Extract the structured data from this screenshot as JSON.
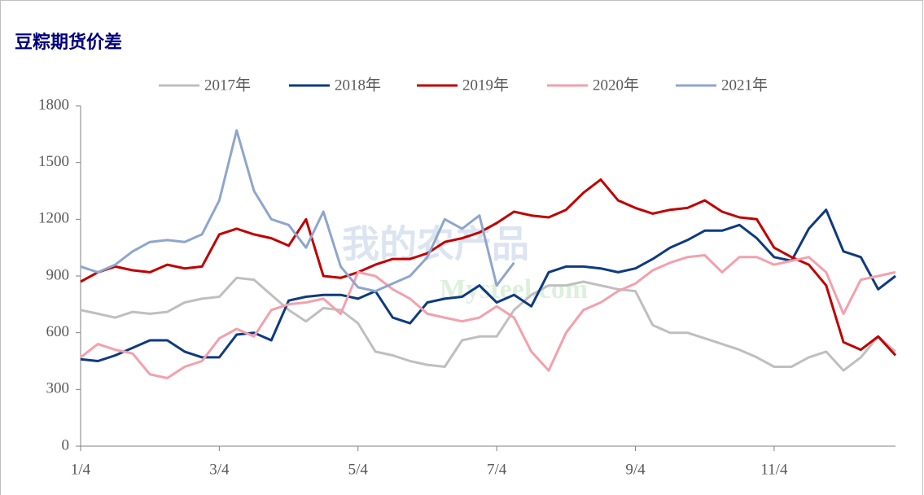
{
  "chart_data": {
    "type": "line",
    "title": "豆粽期货价差",
    "watermark": [
      "我的农产品",
      "Mysteel.com"
    ],
    "categories": [
      "1/4",
      null,
      null,
      null,
      null,
      null,
      null,
      null,
      "3/4",
      null,
      null,
      null,
      null,
      null,
      null,
      null,
      "5/4",
      null,
      null,
      null,
      null,
      null,
      null,
      null,
      "7/4",
      null,
      null,
      null,
      null,
      null,
      null,
      null,
      "9/4",
      null,
      null,
      null,
      null,
      null,
      null,
      null,
      "11/4",
      null,
      null,
      null,
      null,
      null,
      null,
      null
    ],
    "ylim": [
      0,
      1800
    ],
    "yticks": [
      0,
      300,
      600,
      900,
      1200,
      1500,
      1800
    ],
    "series": [
      {
        "name": "2017年",
        "color": "#bfbfbf",
        "values": [
          720,
          700,
          680,
          710,
          700,
          710,
          760,
          780,
          790,
          890,
          880,
          800,
          720,
          660,
          730,
          720,
          650,
          500,
          480,
          450,
          430,
          420,
          560,
          580,
          580,
          720,
          800,
          850,
          850,
          870,
          850,
          830,
          820,
          640,
          600,
          600,
          570,
          540,
          510,
          470,
          420,
          420,
          470,
          500,
          400,
          470,
          580,
          500
        ]
      },
      {
        "name": "2018年",
        "color": "#0e3a80",
        "values": [
          460,
          450,
          480,
          520,
          560,
          560,
          500,
          470,
          470,
          590,
          600,
          560,
          770,
          790,
          800,
          800,
          780,
          820,
          680,
          650,
          760,
          780,
          790,
          850,
          760,
          800,
          740,
          920,
          950,
          950,
          940,
          920,
          940,
          990,
          1050,
          1090,
          1140,
          1140,
          1170,
          1100,
          1000,
          980,
          1150,
          1250,
          1030,
          1000,
          830,
          900
        ]
      },
      {
        "name": "2019年",
        "color": "#c00000",
        "values": [
          870,
          920,
          950,
          930,
          920,
          960,
          940,
          950,
          1120,
          1150,
          1120,
          1100,
          1060,
          1200,
          900,
          890,
          920,
          960,
          990,
          990,
          1020,
          1080,
          1100,
          1130,
          1180,
          1240,
          1220,
          1210,
          1250,
          1340,
          1410,
          1300,
          1260,
          1230,
          1250,
          1260,
          1300,
          1240,
          1210,
          1200,
          1050,
          1000,
          960,
          850,
          550,
          510,
          580,
          480
        ]
      },
      {
        "name": "2020年",
        "color": "#f4a0ac",
        "values": [
          470,
          540,
          510,
          490,
          380,
          360,
          420,
          450,
          570,
          620,
          580,
          720,
          750,
          760,
          780,
          700,
          920,
          900,
          830,
          780,
          700,
          680,
          660,
          680,
          740,
          680,
          500,
          400,
          600,
          720,
          760,
          820,
          860,
          930,
          970,
          1000,
          1010,
          920,
          1000,
          1000,
          960,
          980,
          1000,
          920,
          700,
          880,
          900,
          920
        ]
      },
      {
        "name": "2021年",
        "color": "#8ea6cc",
        "values": [
          950,
          920,
          960,
          1030,
          1080,
          1090,
          1080,
          1120,
          1300,
          1670,
          1350,
          1200,
          1170,
          1050,
          1240,
          950,
          840,
          820,
          860,
          900,
          1000,
          1200,
          1150,
          1220,
          850,
          970,
          null,
          null,
          null,
          null,
          null,
          null,
          null,
          null,
          null,
          null,
          null,
          null,
          null,
          null,
          null,
          null,
          null,
          null,
          null,
          null,
          null,
          null
        ]
      }
    ]
  }
}
